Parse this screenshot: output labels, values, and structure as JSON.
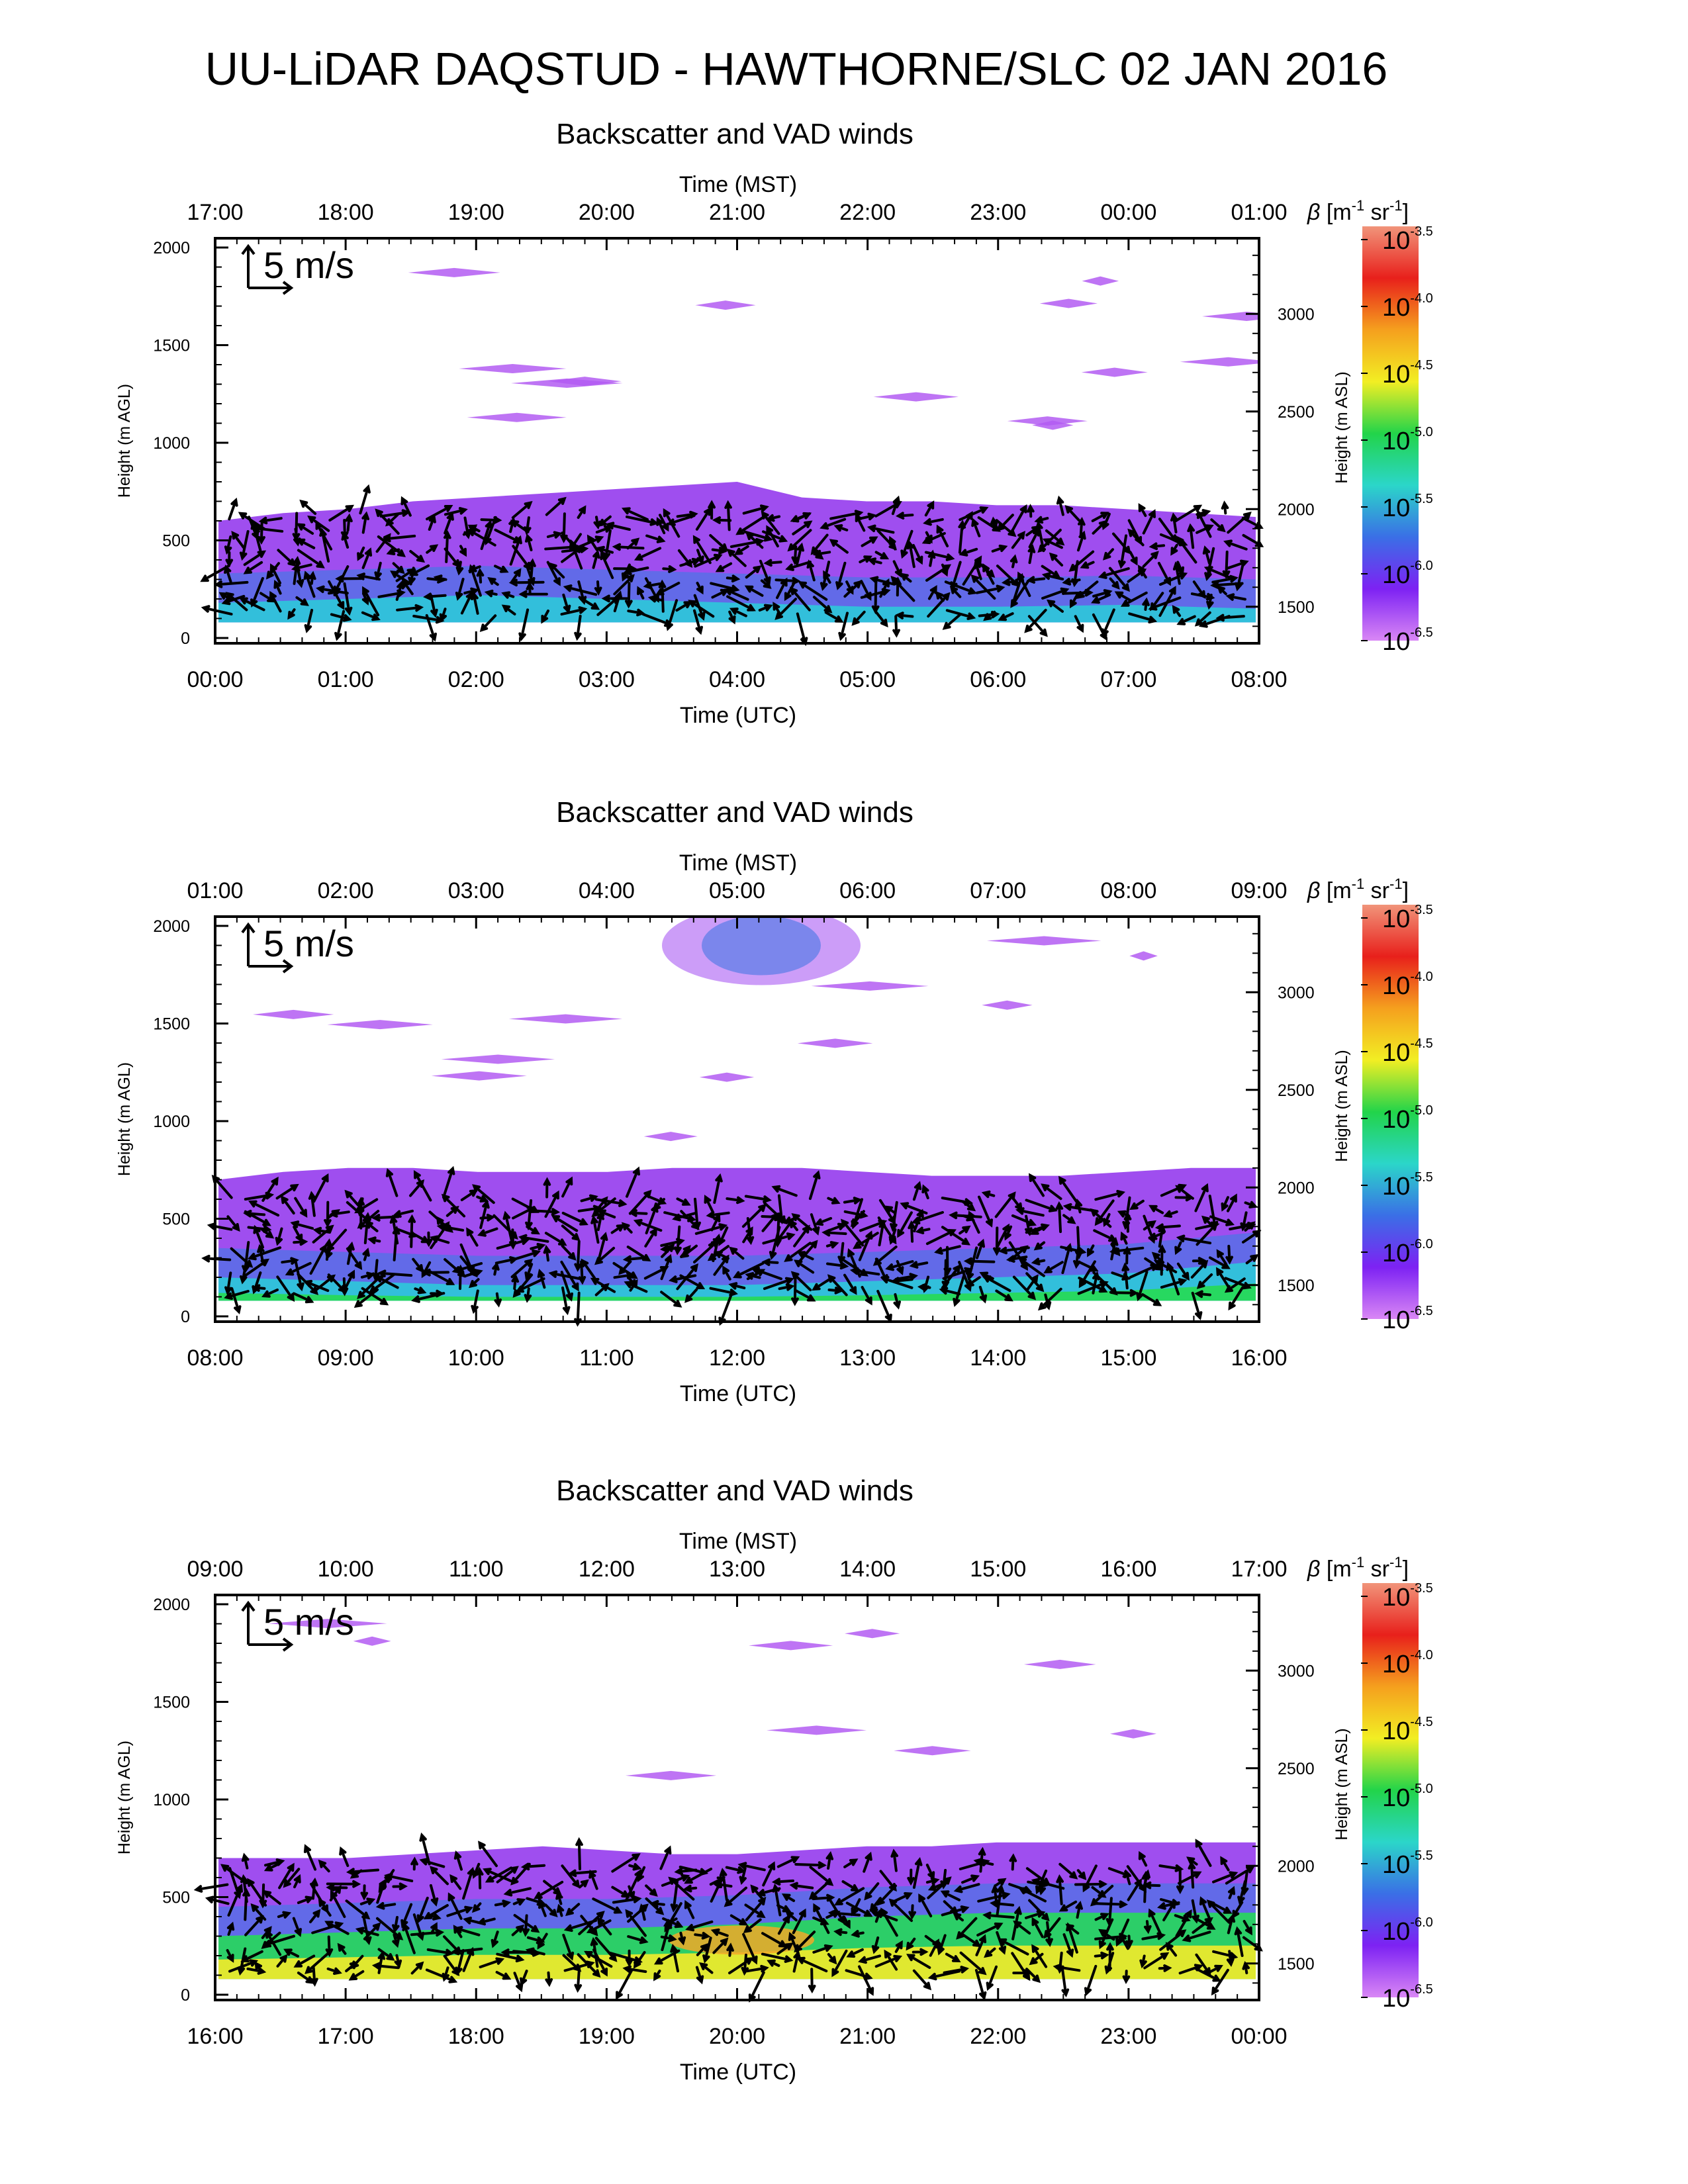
{
  "page": {
    "title": "UU-LiDAR DAQSTUD - HAWTHORNE/SLC 02 JAN 2016"
  },
  "chart_data": [
    {
      "type": "heatmap",
      "title": "Backscatter and VAD winds",
      "top_axis": {
        "label": "Time (MST)",
        "ticks": [
          "17:00",
          "18:00",
          "19:00",
          "20:00",
          "21:00",
          "22:00",
          "23:00",
          "00:00",
          "01:00"
        ]
      },
      "bottom_axis": {
        "label": "Time (UTC)",
        "ticks": [
          "00:00",
          "01:00",
          "02:00",
          "03:00",
          "04:00",
          "05:00",
          "06:00",
          "07:00",
          "08:00"
        ]
      },
      "left_axis": {
        "label": "Height (m AGL)",
        "ticks": [
          "0",
          "500",
          "1000",
          "1500",
          "2000"
        ],
        "range": [
          0,
          2000
        ]
      },
      "right_axis": {
        "label": "Height (m ASL)",
        "ticks": [
          "1500",
          "2000",
          "2500",
          "3000"
        ],
        "range": [
          1340,
          3340
        ]
      },
      "wind_scale_label": "5 m/s",
      "layer": {
        "top_m": [
          600,
          640,
          660,
          700,
          720,
          740,
          760,
          780,
          800,
          720,
          700,
          700,
          680,
          680,
          660,
          640,
          620
        ],
        "dominant_class": "violet"
      },
      "near_surface_band": {
        "top_m": [
          180,
          200,
          220,
          200,
          180,
          160,
          160,
          170,
          150
        ]
      },
      "wind_barbs_top_m": 620
    },
    {
      "type": "heatmap",
      "title": "Backscatter and VAD winds",
      "top_axis": {
        "label": "Time (MST)",
        "ticks": [
          "01:00",
          "02:00",
          "03:00",
          "04:00",
          "05:00",
          "06:00",
          "07:00",
          "08:00",
          "09:00"
        ]
      },
      "bottom_axis": {
        "label": "Time (UTC)",
        "ticks": [
          "08:00",
          "09:00",
          "10:00",
          "11:00",
          "12:00",
          "13:00",
          "14:00",
          "15:00",
          "16:00"
        ]
      },
      "left_axis": {
        "label": "Height (m AGL)",
        "ticks": [
          "0",
          "500",
          "1000",
          "1500",
          "2000"
        ],
        "range": [
          0,
          2000
        ]
      },
      "right_axis": {
        "label": "Height (m ASL)",
        "ticks": [
          "1500",
          "2000",
          "2500",
          "3000"
        ],
        "range": [
          1340,
          3340
        ]
      },
      "wind_scale_label": "5 m/s",
      "layer": {
        "top_m": [
          700,
          740,
          760,
          760,
          740,
          740,
          740,
          760,
          760,
          760,
          740,
          720,
          720,
          720,
          740,
          760,
          760
        ],
        "dominant_class": "violet"
      },
      "near_surface_band": {
        "top_m": [
          200,
          180,
          160,
          160,
          160,
          180,
          200,
          220,
          280
        ]
      },
      "wind_barbs_top_m": 600
    },
    {
      "type": "heatmap",
      "title": "Backscatter and VAD winds",
      "top_axis": {
        "label": "Time (MST)",
        "ticks": [
          "09:00",
          "10:00",
          "11:00",
          "12:00",
          "13:00",
          "14:00",
          "15:00",
          "16:00",
          "17:00"
        ]
      },
      "bottom_axis": {
        "label": "Time (UTC)",
        "ticks": [
          "16:00",
          "17:00",
          "18:00",
          "19:00",
          "20:00",
          "21:00",
          "22:00",
          "23:00",
          "00:00"
        ]
      },
      "left_axis": {
        "label": "Height (m AGL)",
        "ticks": [
          "0",
          "500",
          "1000",
          "1500",
          "2000"
        ],
        "range": [
          0,
          2000
        ]
      },
      "right_axis": {
        "label": "Height (m ASL)",
        "ticks": [
          "1500",
          "2000",
          "2500",
          "3000"
        ],
        "range": [
          1340,
          3340
        ]
      },
      "wind_scale_label": "5 m/s",
      "layer": {
        "top_m": [
          700,
          700,
          700,
          720,
          740,
          760,
          740,
          720,
          720,
          740,
          760,
          760,
          780,
          780,
          780,
          780,
          780
        ],
        "dominant_class": "violet"
      },
      "near_surface_band": {
        "top_m": [
          300,
          320,
          340,
          340,
          360,
          400,
          420,
          420,
          420
        ]
      },
      "wind_barbs_top_m": 650
    }
  ],
  "colorbar": {
    "label": "β [m⁻¹ sr⁻¹]",
    "label_parts": {
      "beta": "β",
      "open": "[m",
      "m_exp": "-1",
      "sr": " sr",
      "sr_exp": "-1",
      "close": "]"
    },
    "base": "10",
    "exponents": [
      "-3.5",
      "-4.0",
      "-4.5",
      "-5.0",
      "-5.5",
      "-6.0",
      "-6.5"
    ],
    "scale": "log",
    "colors": [
      "#f1947a",
      "#e8201b",
      "#f5a01e",
      "#f2ee23",
      "#22d44a",
      "#2bd6c9",
      "#3a6fe6",
      "#7d22f3",
      "#d987f5"
    ]
  },
  "colors": {
    "band_violet": "#9a45ee",
    "band_blue": "#4d74e5",
    "band_cyan": "#2ec9d9",
    "band_green": "#27d95a",
    "band_yellow": "#eae92d",
    "band_orange": "#f2a828",
    "arrow": "#000000"
  }
}
